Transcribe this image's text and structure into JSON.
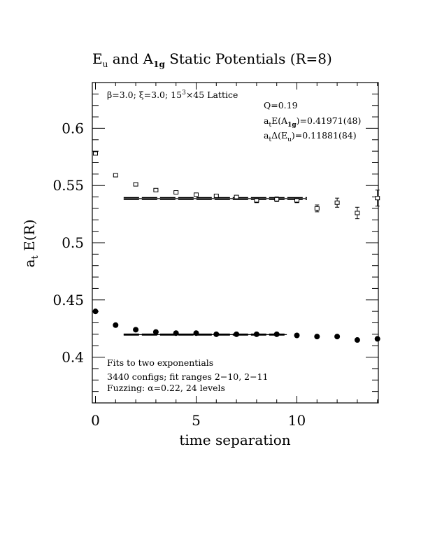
{
  "chart_data": {
    "type": "scatter",
    "title": "E",
    "title_parts": {
      "e_sub": "u",
      "and": " and A",
      "a_sub": "1g",
      "rest": " Static Potentials (R=8)"
    },
    "xlabel": "time separation",
    "ylabel": "a",
    "ylabel_sub": "t",
    "ylabel_rest": " E(R)",
    "xlim": [
      0,
      14
    ],
    "ylim": [
      0.36,
      0.64
    ],
    "x_ticks": [
      0,
      5,
      10
    ],
    "x_tick_labels": [
      "0",
      "5",
      "10"
    ],
    "y_ticks": [
      0.4,
      0.45,
      0.5,
      0.55,
      0.6
    ],
    "y_tick_labels": [
      "0.4",
      "0.45",
      "0.5",
      "0.55",
      "0.6"
    ],
    "annotations": {
      "lattice_beta": "β=3.0; ξ=3.0; 15",
      "lattice_exp": "3",
      "lattice_rest": "×45 Lattice",
      "q_value": "Q=0.19",
      "a1g_prefix": "a",
      "a1g_t": "t",
      "a1g_mid": "E(A",
      "a1g_sub": "1g",
      "a1g_val": ")=0.41971(48)",
      "eu_prefix": "a",
      "eu_t": "t",
      "eu_mid": "Δ(E",
      "eu_sub": "u",
      "eu_val": ")=0.11881(84)",
      "fits_line": "Fits to two exponentials",
      "configs_line": "3440 configs; fit ranges 2−10, 2−11",
      "fuzzing_line": "Fuzzing: α=0.22, 24 levels"
    },
    "series": [
      {
        "name": "E_u",
        "marker": "open-square",
        "x": [
          0,
          1,
          2,
          3,
          4,
          5,
          6,
          7,
          8,
          9,
          10,
          11,
          12,
          13,
          14
        ],
        "y": [
          0.578,
          0.559,
          0.551,
          0.546,
          0.544,
          0.542,
          0.541,
          0.54,
          0.537,
          0.538,
          0.537,
          0.53,
          0.535,
          0.526,
          0.539
        ],
        "err": [
          0.001,
          0.001,
          0.001,
          0.001,
          0.001,
          0.001,
          0.001,
          0.001,
          0.002,
          0.002,
          0.002,
          0.003,
          0.004,
          0.005,
          0.007
        ]
      },
      {
        "name": "A_1g",
        "marker": "filled-circle",
        "x": [
          0,
          1,
          2,
          3,
          4,
          5,
          6,
          7,
          8,
          9,
          10,
          11,
          12,
          13,
          14
        ],
        "y": [
          0.44,
          0.428,
          0.424,
          0.422,
          0.421,
          0.421,
          0.42,
          0.42,
          0.42,
          0.42,
          0.419,
          0.418,
          0.418,
          0.415,
          0.416
        ],
        "err": [
          0.0005,
          0.0005,
          0.0005,
          0.0005,
          0.0005,
          0.0005,
          0.0005,
          0.0005,
          0.0005,
          0.0005,
          0.0005,
          0.0005,
          0.0005,
          0.0005,
          0.0005
        ]
      }
    ],
    "fit_lines": [
      {
        "name": "E_u fit",
        "x_range": [
          1.4,
          10.5
        ],
        "center": 0.5386,
        "band": 0.0009
      },
      {
        "name": "A_1g fit",
        "x_range": [
          1.4,
          9.5
        ],
        "center": 0.4197,
        "band": 0.0005
      }
    ]
  }
}
